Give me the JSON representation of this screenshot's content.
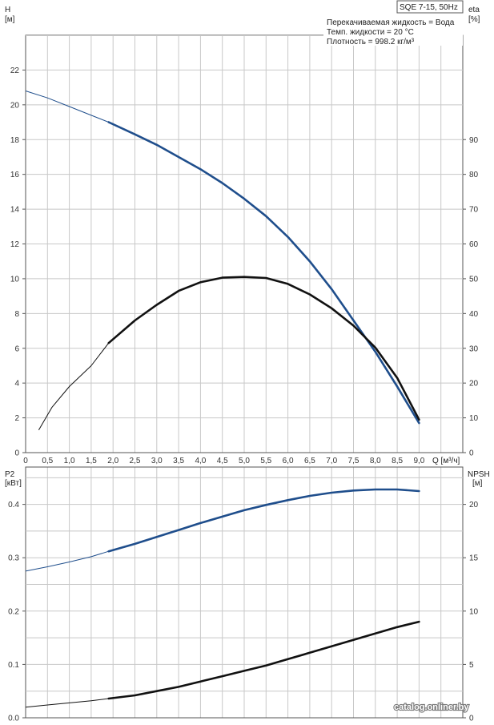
{
  "chart_data": [
    {
      "type": "line",
      "title_box": "SQE 7-15, 50Hz",
      "notes": [
        "Перекачиваемая жидкость = Вода",
        "Темп. жидкости = 20 °C",
        "Плотность = 998.2 кг/м³"
      ],
      "y_left": {
        "name": "H",
        "unit": "[м]",
        "ticks": [
          "0",
          "2",
          "4",
          "6",
          "8",
          "10",
          "12",
          "14",
          "16",
          "18",
          "20",
          "22"
        ],
        "ylim": [
          0,
          24
        ]
      },
      "y_right": {
        "name": "eta",
        "unit": "[%]",
        "ticks": [
          "0",
          "10",
          "20",
          "30",
          "40",
          "50",
          "60",
          "70",
          "80",
          "90"
        ],
        "ylim": [
          0,
          120
        ]
      },
      "x": {
        "label": "Q [м³/ч]",
        "ticks": [
          "0",
          "0,5",
          "1,0",
          "1,5",
          "2,0",
          "2,5",
          "3,0",
          "3,5",
          "4,0",
          "4,5",
          "5,0",
          "5,5",
          "6,0",
          "6,5",
          "7,0",
          "7,5",
          "8,0",
          "8,5",
          "9,0"
        ],
        "xlim": [
          0,
          10
        ]
      },
      "series": [
        {
          "axis": "left",
          "color": "#1f4e8c",
          "x": [
            0,
            0.5,
            1,
            1.5,
            1.9,
            2.5,
            3,
            3.5,
            4,
            4.5,
            5,
            5.5,
            6,
            6.5,
            7,
            7.5,
            8,
            8.5,
            9
          ],
          "y": [
            20.8,
            20.4,
            19.9,
            19.4,
            19.0,
            18.3,
            17.7,
            17.0,
            16.3,
            15.5,
            14.6,
            13.6,
            12.4,
            11.0,
            9.4,
            7.6,
            5.8,
            3.8,
            1.7
          ],
          "operating_from": 1.9
        },
        {
          "axis": "right",
          "color": "#111111",
          "x": [
            0.3,
            0.6,
            1,
            1.5,
            1.9,
            2.5,
            3,
            3.5,
            4,
            4.5,
            5,
            5.5,
            6,
            6.5,
            7,
            7.5,
            8,
            8.5,
            9
          ],
          "y": [
            6.5,
            13,
            19,
            25,
            31.5,
            38,
            42.5,
            46.5,
            49,
            50.3,
            50.5,
            50.2,
            48.5,
            45.5,
            41.5,
            36.5,
            30.2,
            21.5,
            9.5
          ],
          "operating_from": 1.9
        }
      ]
    },
    {
      "type": "line",
      "y_left": {
        "name": "P2",
        "unit": "[кВт]",
        "ticks": [
          "0.0",
          "0.1",
          "0.2",
          "0.3",
          "0.4"
        ],
        "ylim": [
          0,
          0.47
        ]
      },
      "y_right": {
        "name": "NPSH",
        "unit": "[м]",
        "ticks": [
          "0",
          "5",
          "10",
          "15",
          "20"
        ],
        "ylim": [
          0,
          23.5
        ]
      },
      "x": {
        "xlim": [
          0,
          10
        ]
      },
      "series": [
        {
          "axis": "left",
          "color": "#1f4e8c",
          "x": [
            0,
            0.5,
            1,
            1.5,
            1.9,
            2.5,
            3,
            3.5,
            4,
            4.5,
            5,
            5.5,
            6,
            6.5,
            7,
            7.5,
            8,
            8.5,
            9
          ],
          "y": [
            0.275,
            0.283,
            0.292,
            0.302,
            0.312,
            0.326,
            0.339,
            0.352,
            0.365,
            0.377,
            0.389,
            0.399,
            0.408,
            0.416,
            0.422,
            0.426,
            0.428,
            0.428,
            0.425
          ],
          "operating_from": 1.9
        },
        {
          "axis": "right",
          "color": "#111111",
          "x": [
            0,
            0.5,
            1,
            1.5,
            1.9,
            2.5,
            3,
            3.5,
            4,
            4.5,
            5,
            5.5,
            6,
            6.5,
            7,
            7.5,
            8,
            8.5,
            9
          ],
          "y": [
            1.0,
            1.2,
            1.4,
            1.6,
            1.8,
            2.1,
            2.5,
            2.9,
            3.4,
            3.9,
            4.4,
            4.9,
            5.5,
            6.1,
            6.7,
            7.3,
            7.9,
            8.5,
            9.0
          ],
          "operating_from": 1.9
        }
      ]
    }
  ],
  "watermark": "catalog.onliner.by"
}
